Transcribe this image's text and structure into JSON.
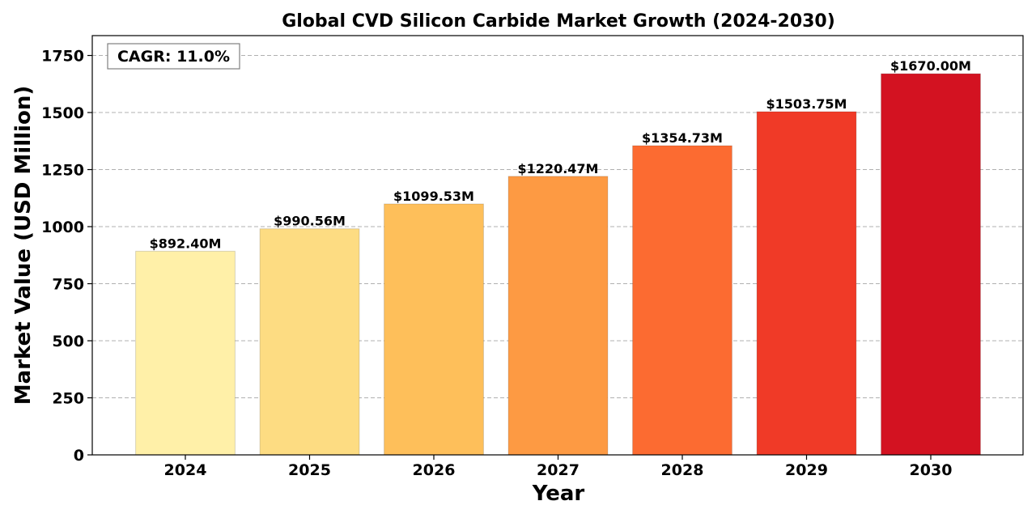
{
  "chart_data": {
    "type": "bar",
    "title": "Global CVD Silicon Carbide Market Growth (2024-2030)",
    "xlabel": "Year",
    "ylabel": "Market Value (USD Million)",
    "categories": [
      "2024",
      "2025",
      "2026",
      "2027",
      "2028",
      "2029",
      "2030"
    ],
    "values": [
      892.4,
      990.56,
      1099.53,
      1220.47,
      1354.73,
      1503.75,
      1670.0
    ],
    "value_labels": [
      "$892.40M",
      "$990.56M",
      "$1099.53M",
      "$1220.47M",
      "$1354.73M",
      "$1503.75M",
      "$1670.00M"
    ],
    "bar_colors": [
      "#fff0a8",
      "#fddc82",
      "#febf5a",
      "#fd9a43",
      "#fc6b31",
      "#f03a27",
      "#d31221"
    ],
    "ylim": [
      0,
      1837
    ],
    "yticks": [
      0,
      250,
      500,
      750,
      1000,
      1250,
      1500,
      1750
    ],
    "ytick_labels": [
      "0",
      "250",
      "500",
      "750",
      "1000",
      "1250",
      "1500",
      "1750"
    ],
    "grid": true,
    "annotation": "CAGR: 11.0%",
    "annotation_position": "top-left"
  }
}
